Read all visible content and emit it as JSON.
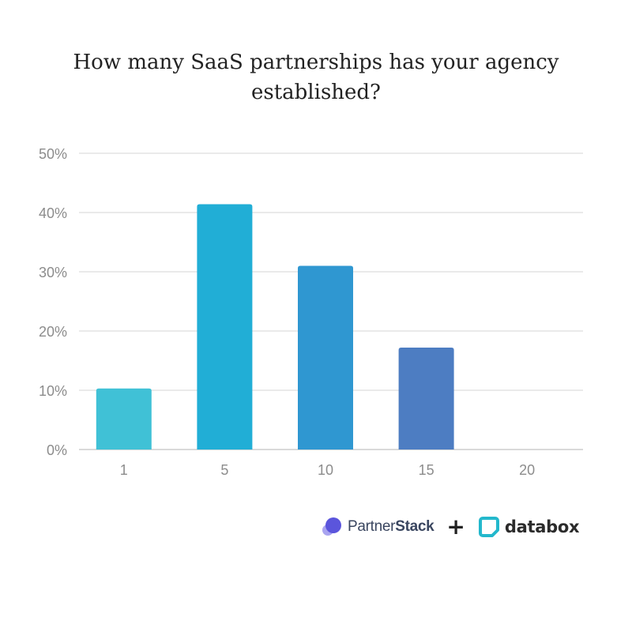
{
  "chart_data": {
    "type": "bar",
    "title": "How many SaaS partnerships has your agency established?",
    "xlabel": "",
    "ylabel": "",
    "categories": [
      "1",
      "5",
      "10",
      "15",
      "20"
    ],
    "values": [
      10.3,
      41.4,
      31.0,
      17.2,
      0
    ],
    "colors": [
      "#40c1d6",
      "#21aed6",
      "#2f97d1",
      "#4d7dc2",
      "#4d7dc2"
    ],
    "ylim": [
      0,
      50
    ],
    "yticks": [
      0,
      10,
      20,
      30,
      40,
      50
    ],
    "ytick_labels": [
      "0%",
      "10%",
      "20%",
      "30%",
      "40%",
      "50%"
    ],
    "grid": true,
    "legend": "none"
  },
  "branding": {
    "partnerstack_prefix": "Partner",
    "partnerstack_suffix": "Stack",
    "plus": "+",
    "databox": "databox"
  }
}
